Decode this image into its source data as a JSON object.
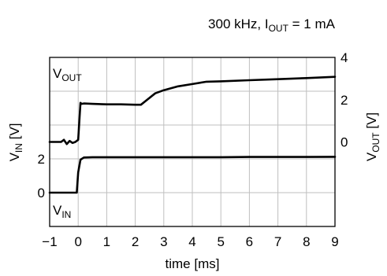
{
  "chart_data": {
    "type": "line",
    "title": {
      "main": "300 kHz, I",
      "sub": "OUT",
      "rest": " = 1 mA"
    },
    "x_axis": {
      "label": "time [ms]",
      "range": [
        -1,
        9
      ],
      "ticks": [
        -1,
        0,
        1,
        2,
        3,
        4,
        5,
        6,
        7,
        8,
        9
      ],
      "tick_labels": [
        "−1",
        "0",
        "1",
        "2",
        "3",
        "4",
        "5",
        "6",
        "7",
        "8",
        "9"
      ]
    },
    "y_left": {
      "label_main": "V",
      "label_sub": "IN",
      "label_rest": " [V]",
      "range": [
        -2,
        8
      ],
      "ticks": [
        0,
        2
      ],
      "tick_labels": [
        "0",
        "2"
      ]
    },
    "y_right": {
      "label_main": "V",
      "label_sub": "OUT",
      "label_rest": " [V]",
      "range": [
        -4,
        4
      ],
      "ticks": [
        0,
        2,
        4
      ],
      "tick_labels": [
        "0",
        "2",
        "4"
      ]
    },
    "grid": true,
    "series": [
      {
        "label_main": "V",
        "label_sub": "OUT",
        "axis": "right",
        "x": [
          -1,
          -0.6,
          -0.5,
          -0.4,
          -0.3,
          -0.2,
          -0.1,
          0.0,
          0.05,
          0.08,
          0.12,
          0.2,
          0.5,
          1.0,
          1.5,
          2.0,
          2.2,
          2.7,
          3.0,
          3.5,
          4.0,
          4.5,
          5.0,
          6.0,
          7.0,
          8.0,
          9.0
        ],
        "y": [
          0.0,
          0.0,
          0.1,
          -0.1,
          0.05,
          -0.05,
          0.0,
          0.1,
          1.2,
          1.85,
          1.8,
          1.82,
          1.8,
          1.78,
          1.78,
          1.76,
          1.76,
          2.3,
          2.45,
          2.63,
          2.74,
          2.85,
          2.87,
          2.92,
          2.97,
          3.02,
          3.08
        ]
      },
      {
        "label_main": "V",
        "label_sub": "IN",
        "axis": "left",
        "x": [
          -1,
          -0.05,
          0.0,
          0.08,
          0.2,
          0.5,
          1,
          2,
          3,
          4,
          5,
          6,
          7,
          8,
          9
        ],
        "y": [
          0.0,
          0.0,
          1.2,
          1.95,
          2.08,
          2.1,
          2.1,
          2.1,
          2.1,
          2.1,
          2.1,
          2.11,
          2.11,
          2.11,
          2.12
        ]
      }
    ]
  }
}
